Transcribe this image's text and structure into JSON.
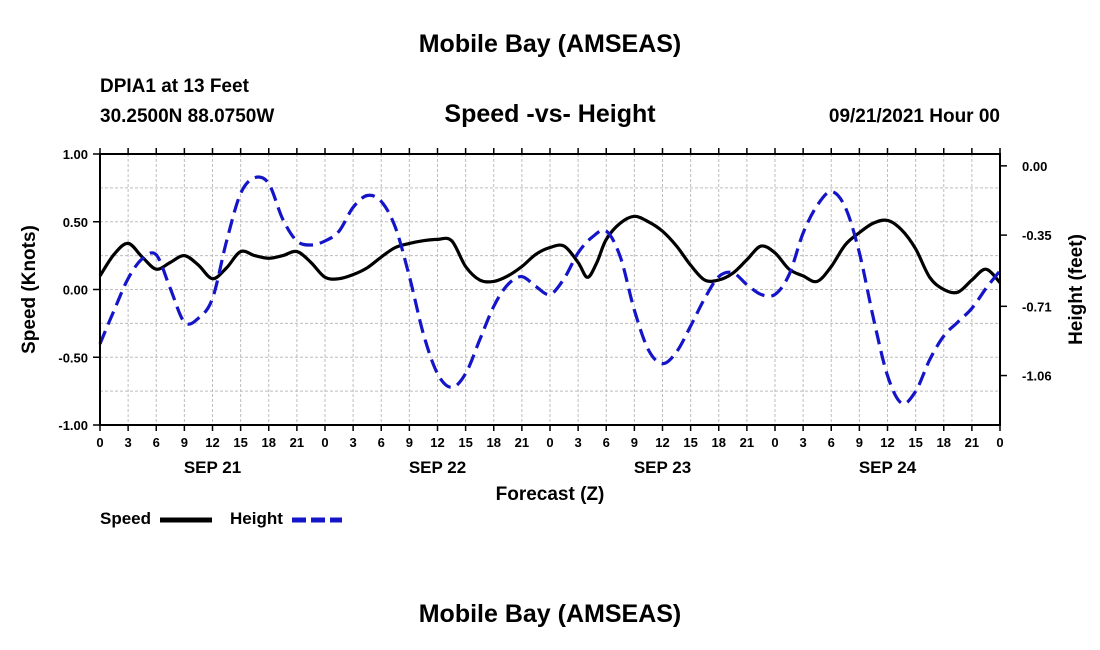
{
  "page": {
    "title_top": "Mobile Bay (AMSEAS)",
    "title_bottom": "Mobile Bay (AMSEAS)",
    "station_name": "DPIA1 at 13 Feet",
    "station_coords": "30.2500N  88.0750W",
    "chart_title": "Speed -vs- Height",
    "timestamp": "09/21/2021 Hour 00"
  },
  "colors": {
    "speed": "#000000",
    "height": "#1414c8",
    "grid": "#bdbdbd"
  },
  "chart_data": {
    "type": "line",
    "title": "Speed -vs- Height",
    "xlabel": "Forecast (Z)",
    "ylabel": "Speed (Knots)",
    "y2label": "Height (feet)",
    "x_unit": "hours",
    "xlim": [
      0,
      96
    ],
    "ylim": [
      -1.0,
      1.0
    ],
    "y2lim": [
      -1.31,
      0.06
    ],
    "grid": true,
    "x_tick_labels": [
      "0",
      "3",
      "6",
      "9",
      "12",
      "15",
      "18",
      "21",
      "0",
      "3",
      "6",
      "9",
      "12",
      "15",
      "18",
      "21",
      "0",
      "3",
      "6",
      "9",
      "12",
      "15",
      "18",
      "21",
      "0",
      "3",
      "6",
      "9",
      "12",
      "15",
      "18",
      "21",
      "0"
    ],
    "y_tick_labels": [
      "1.00",
      "0.50",
      "0.00",
      "-0.50",
      "-1.00"
    ],
    "y_tick_values": [
      1.0,
      0.5,
      0.0,
      -0.5,
      -1.0
    ],
    "y2_tick_labels": [
      "0.00",
      "-0.35",
      "-0.71",
      "-1.06"
    ],
    "y2_tick_values": [
      0.0,
      -0.35,
      -0.71,
      -1.06
    ],
    "day_labels": [
      {
        "label": "SEP 21",
        "x": 12
      },
      {
        "label": "SEP 22",
        "x": 36
      },
      {
        "label": "SEP 23",
        "x": 60
      },
      {
        "label": "SEP 24",
        "x": 84
      }
    ],
    "legend": {
      "placement": "bottom-left",
      "entries": [
        "Speed",
        "Height"
      ]
    },
    "series": [
      {
        "name": "Speed",
        "style": "solid",
        "axis": "left",
        "points": [
          [
            0,
            0.1
          ],
          [
            1.5,
            0.26
          ],
          [
            3,
            0.34
          ],
          [
            4.5,
            0.24
          ],
          [
            6,
            0.15
          ],
          [
            7.5,
            0.2
          ],
          [
            9,
            0.25
          ],
          [
            10.5,
            0.18
          ],
          [
            12,
            0.08
          ],
          [
            13.5,
            0.16
          ],
          [
            15,
            0.28
          ],
          [
            16.5,
            0.25
          ],
          [
            18,
            0.23
          ],
          [
            19.5,
            0.25
          ],
          [
            21,
            0.28
          ],
          [
            22.5,
            0.2
          ],
          [
            24,
            0.09
          ],
          [
            25.5,
            0.08
          ],
          [
            27,
            0.11
          ],
          [
            28.5,
            0.16
          ],
          [
            30,
            0.24
          ],
          [
            31.5,
            0.31
          ],
          [
            33,
            0.34
          ],
          [
            34.5,
            0.36
          ],
          [
            36,
            0.37
          ],
          [
            37.5,
            0.36
          ],
          [
            39,
            0.17
          ],
          [
            40.5,
            0.07
          ],
          [
            42,
            0.06
          ],
          [
            43.5,
            0.1
          ],
          [
            45,
            0.17
          ],
          [
            46.5,
            0.26
          ],
          [
            48,
            0.31
          ],
          [
            49.5,
            0.32
          ],
          [
            51,
            0.2
          ],
          [
            52,
            0.09
          ],
          [
            53,
            0.2
          ],
          [
            54,
            0.37
          ],
          [
            55.5,
            0.49
          ],
          [
            57,
            0.54
          ],
          [
            58.5,
            0.5
          ],
          [
            60,
            0.43
          ],
          [
            61.5,
            0.32
          ],
          [
            63,
            0.18
          ],
          [
            64.5,
            0.07
          ],
          [
            66,
            0.07
          ],
          [
            67.5,
            0.12
          ],
          [
            69,
            0.22
          ],
          [
            70.5,
            0.32
          ],
          [
            72,
            0.27
          ],
          [
            73.5,
            0.15
          ],
          [
            75,
            0.1
          ],
          [
            76.5,
            0.06
          ],
          [
            78,
            0.17
          ],
          [
            79.5,
            0.33
          ],
          [
            81,
            0.42
          ],
          [
            82.5,
            0.49
          ],
          [
            84,
            0.51
          ],
          [
            85.5,
            0.44
          ],
          [
            87,
            0.3
          ],
          [
            88.5,
            0.09
          ],
          [
            90,
            0.0
          ],
          [
            91.5,
            -0.02
          ],
          [
            93,
            0.07
          ],
          [
            94.5,
            0.15
          ],
          [
            96,
            0.05
          ]
        ]
      },
      {
        "name": "Height",
        "style": "dashed",
        "axis": "right",
        "points": [
          [
            0,
            -0.9
          ],
          [
            1.5,
            -0.73
          ],
          [
            3,
            -0.57
          ],
          [
            4.5,
            -0.47
          ],
          [
            6,
            -0.45
          ],
          [
            7.5,
            -0.62
          ],
          [
            9,
            -0.79
          ],
          [
            10.5,
            -0.77
          ],
          [
            12,
            -0.67
          ],
          [
            13.5,
            -0.38
          ],
          [
            15,
            -0.14
          ],
          [
            16.5,
            -0.06
          ],
          [
            18,
            -0.09
          ],
          [
            19.5,
            -0.27
          ],
          [
            21,
            -0.38
          ],
          [
            22.5,
            -0.4
          ],
          [
            24,
            -0.38
          ],
          [
            25.5,
            -0.33
          ],
          [
            27,
            -0.21
          ],
          [
            28.5,
            -0.15
          ],
          [
            30,
            -0.18
          ],
          [
            31.5,
            -0.31
          ],
          [
            33,
            -0.56
          ],
          [
            34.5,
            -0.85
          ],
          [
            36,
            -1.05
          ],
          [
            37.5,
            -1.12
          ],
          [
            39,
            -1.05
          ],
          [
            40.5,
            -0.88
          ],
          [
            42,
            -0.71
          ],
          [
            43.5,
            -0.6
          ],
          [
            45,
            -0.56
          ],
          [
            46.5,
            -0.61
          ],
          [
            48,
            -0.65
          ],
          [
            49.5,
            -0.57
          ],
          [
            51,
            -0.44
          ],
          [
            52.5,
            -0.36
          ],
          [
            54,
            -0.33
          ],
          [
            55.5,
            -0.46
          ],
          [
            57,
            -0.73
          ],
          [
            58.5,
            -0.93
          ],
          [
            60,
            -1.0
          ],
          [
            61.5,
            -0.94
          ],
          [
            63,
            -0.81
          ],
          [
            64.5,
            -0.67
          ],
          [
            66,
            -0.56
          ],
          [
            67.5,
            -0.54
          ],
          [
            69,
            -0.6
          ],
          [
            70.5,
            -0.65
          ],
          [
            72,
            -0.65
          ],
          [
            73.5,
            -0.55
          ],
          [
            75,
            -0.34
          ],
          [
            76.5,
            -0.2
          ],
          [
            78,
            -0.13
          ],
          [
            79.5,
            -0.21
          ],
          [
            81,
            -0.44
          ],
          [
            82.5,
            -0.77
          ],
          [
            84,
            -1.06
          ],
          [
            85.5,
            -1.2
          ],
          [
            87,
            -1.14
          ],
          [
            88.5,
            -0.98
          ],
          [
            90,
            -0.86
          ],
          [
            91.5,
            -0.79
          ],
          [
            93,
            -0.72
          ],
          [
            94.5,
            -0.62
          ],
          [
            96,
            -0.53
          ]
        ]
      }
    ]
  }
}
